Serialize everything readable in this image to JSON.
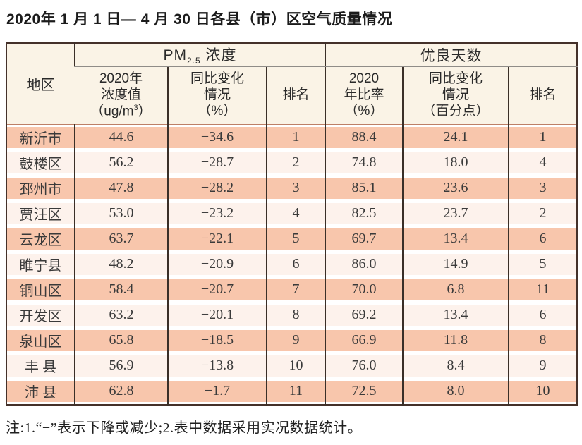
{
  "title": "2020年 1 月 1 日— 4 月 30 日各县（市）区空气质量情况",
  "table": {
    "header": {
      "region": "地区",
      "pm_group": {
        "prefix": "PM",
        "sub": "2.5",
        "suffix": " 浓度"
      },
      "days_group": "优良天数",
      "pm_value": {
        "line1": "2020年",
        "line2": "浓度值",
        "line3_prefix": "（ug/m",
        "line3_sup": "3",
        "line3_suffix": "）"
      },
      "pm_change": {
        "line1": "同比变化",
        "line2": "情况",
        "line3": "（%）"
      },
      "pm_rank": "排名",
      "days_ratio": {
        "line1": "2020",
        "line2": "年比率",
        "line3": "（%）"
      },
      "days_change": {
        "line1": "同比变化",
        "line2": "情况",
        "line3": "（百分点）"
      },
      "days_rank": "排名"
    },
    "rows": [
      {
        "region": "新沂市",
        "pm_value": "44.6",
        "pm_change": "−34.6",
        "pm_rank": "1",
        "days_ratio": "88.4",
        "days_change": "24.1",
        "days_rank": "1"
      },
      {
        "region": "鼓楼区",
        "pm_value": "56.2",
        "pm_change": "−28.7",
        "pm_rank": "2",
        "days_ratio": "74.8",
        "days_change": "18.0",
        "days_rank": "4"
      },
      {
        "region": "邳州市",
        "pm_value": "47.8",
        "pm_change": "−28.2",
        "pm_rank": "3",
        "days_ratio": "85.1",
        "days_change": "23.6",
        "days_rank": "3"
      },
      {
        "region": "贾汪区",
        "pm_value": "53.0",
        "pm_change": "−23.2",
        "pm_rank": "4",
        "days_ratio": "82.5",
        "days_change": "23.7",
        "days_rank": "2"
      },
      {
        "region": "云龙区",
        "pm_value": "63.7",
        "pm_change": "−22.1",
        "pm_rank": "5",
        "days_ratio": "69.7",
        "days_change": "13.4",
        "days_rank": "6"
      },
      {
        "region": "睢宁县",
        "pm_value": "48.2",
        "pm_change": "−20.9",
        "pm_rank": "6",
        "days_ratio": "86.0",
        "days_change": "14.9",
        "days_rank": "5"
      },
      {
        "region": "铜山区",
        "pm_value": "58.4",
        "pm_change": "−20.7",
        "pm_rank": "7",
        "days_ratio": "70.0",
        "days_change": "6.8",
        "days_rank": "11"
      },
      {
        "region": "开发区",
        "pm_value": "63.2",
        "pm_change": "−20.1",
        "pm_rank": "8",
        "days_ratio": "69.2",
        "days_change": "13.4",
        "days_rank": "6"
      },
      {
        "region": "泉山区",
        "pm_value": "65.8",
        "pm_change": "−18.5",
        "pm_rank": "9",
        "days_ratio": "66.9",
        "days_change": "11.8",
        "days_rank": "8"
      },
      {
        "region": "丰 县",
        "pm_value": "56.9",
        "pm_change": "−13.8",
        "pm_rank": "10",
        "days_ratio": "76.0",
        "days_change": "8.4",
        "days_rank": "9"
      },
      {
        "region": "沛 县",
        "pm_value": "62.8",
        "pm_change": "−1.7",
        "pm_rank": "11",
        "days_ratio": "72.5",
        "days_change": "8.0",
        "days_rank": "10"
      }
    ]
  },
  "note": "注:1.“−”表示下降或减少;2.表中数据采用实况数据统计。",
  "colors": {
    "stripe_odd": "#f8c6ac",
    "stripe_even": "#fdf2ec",
    "header_bg": "#faf3e6",
    "outer_border": "#44312a",
    "inner_border": "#3a2f28",
    "group_underline": "#8f8c88",
    "header_body_divider": "#bd7f66"
  }
}
